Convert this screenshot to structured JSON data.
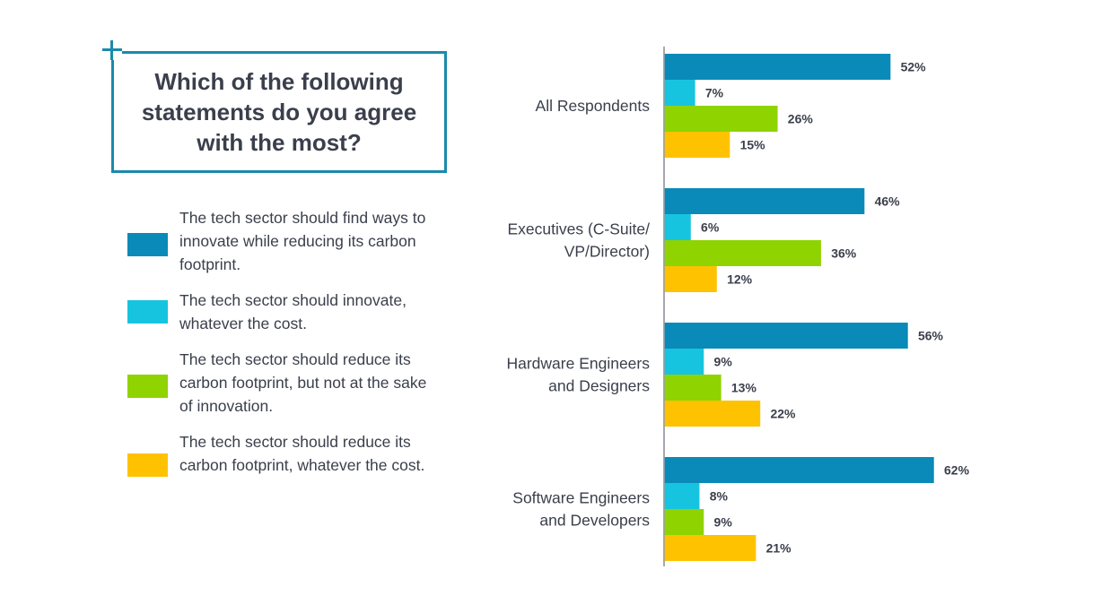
{
  "title": "Which of the following statements do you agree with the most?",
  "legend": [
    {
      "label": "The tech sector should find ways to innovate while reducing its carbon footprint.",
      "color": "#0a8ab8"
    },
    {
      "label": "The tech sector should innovate, whatever the cost.",
      "color": "#17c4e0"
    },
    {
      "label": "The tech sector should reduce its carbon footprint, but not at the sake of innovation.",
      "color": "#8fd300"
    },
    {
      "label": "The tech sector should reduce its carbon footprint, whatever the cost.",
      "color": "#ffc200"
    }
  ],
  "chart_data": {
    "type": "bar",
    "orientation": "horizontal",
    "title": "Which of the following statements do you agree with the most?",
    "categories": [
      "All Respondents",
      "Executives (C-Suite/ VP/Director)",
      "Hardware Engineers and Designers",
      "Software Engineers and Developers"
    ],
    "category_lines": [
      [
        "All Respondents"
      ],
      [
        "Executives (C-Suite/",
        "VP/Director)"
      ],
      [
        "Hardware Engineers",
        "and Designers"
      ],
      [
        "Software Engineers",
        "and Developers"
      ]
    ],
    "series": [
      {
        "name": "The tech sector should find ways to innovate while reducing its carbon footprint.",
        "color": "#0a8ab8",
        "values": [
          52,
          46,
          56,
          62
        ]
      },
      {
        "name": "The tech sector should innovate, whatever the cost.",
        "color": "#17c4e0",
        "values": [
          7,
          6,
          9,
          8
        ]
      },
      {
        "name": "The tech sector should reduce its carbon footprint, but not at the sake of innovation.",
        "color": "#8fd300",
        "values": [
          26,
          36,
          13,
          9
        ]
      },
      {
        "name": "The tech sector should reduce its carbon footprint, whatever the cost.",
        "color": "#ffc200",
        "values": [
          15,
          12,
          22,
          21
        ]
      }
    ],
    "value_suffix": "%",
    "xlim": [
      0,
      62
    ],
    "grid": false,
    "legend_position": "left"
  }
}
